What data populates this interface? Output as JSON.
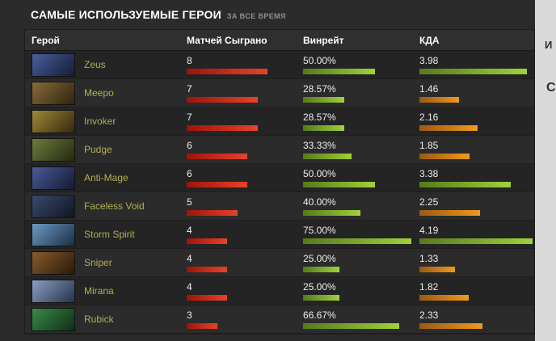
{
  "page": {
    "title": "САМЫЕ ИСПОЛЬЗУЕМЫЕ ГЕРОИ",
    "subtitle": "ЗА ВСЕ ВРЕМЯ"
  },
  "sidebar": {
    "cut_labels": [
      "И",
      "С"
    ]
  },
  "colors": {
    "red_bar": [
      "#9d140a",
      "#e8422a"
    ],
    "green_bar": [
      "#567a1c",
      "#a0d13a"
    ],
    "orange_bar": [
      "#9a5a12",
      "#ef9a1f"
    ]
  },
  "table": {
    "columns": [
      "Герой",
      "Матчей Сыграно",
      "Винрейт",
      "КДА"
    ],
    "max": {
      "matches": 8,
      "winrate": 75.0,
      "kda": 4.19
    },
    "rows": [
      {
        "hero": "Zeus",
        "matches": 8,
        "winrate": "50.00%",
        "winrate_value": 50.0,
        "winrate_color": "green",
        "kda": "3.98",
        "kda_value": 3.98,
        "kda_color": "green",
        "portrait": [
          "#4a5f9e",
          "#141c33"
        ]
      },
      {
        "hero": "Meepo",
        "matches": 7,
        "winrate": "28.57%",
        "winrate_value": 28.57,
        "winrate_color": "green",
        "kda": "1.46",
        "kda_value": 1.46,
        "kda_color": "orange",
        "portrait": [
          "#8a6b3a",
          "#2e2410"
        ]
      },
      {
        "hero": "Invoker",
        "matches": 7,
        "winrate": "28.57%",
        "winrate_value": 28.57,
        "winrate_color": "green",
        "kda": "2.16",
        "kda_value": 2.16,
        "kda_color": "orange",
        "portrait": [
          "#a08838",
          "#33290e"
        ]
      },
      {
        "hero": "Pudge",
        "matches": 6,
        "winrate": "33.33%",
        "winrate_value": 33.33,
        "winrate_color": "green",
        "kda": "1.85",
        "kda_value": 1.85,
        "kda_color": "orange",
        "portrait": [
          "#6e7a3c",
          "#232a10"
        ]
      },
      {
        "hero": "Anti-Mage",
        "matches": 6,
        "winrate": "50.00%",
        "winrate_value": 50.0,
        "winrate_color": "green",
        "kda": "3.38",
        "kda_value": 3.38,
        "kda_color": "green",
        "portrait": [
          "#4a5a9a",
          "#141a33"
        ]
      },
      {
        "hero": "Faceless Void",
        "matches": 5,
        "winrate": "40.00%",
        "winrate_value": 40.0,
        "winrate_color": "green",
        "kda": "2.25",
        "kda_value": 2.25,
        "kda_color": "orange",
        "portrait": [
          "#3a4a6b",
          "#0f1624"
        ]
      },
      {
        "hero": "Storm Spirit",
        "matches": 4,
        "winrate": "75.00%",
        "winrate_value": 75.0,
        "winrate_color": "green",
        "kda": "4.19",
        "kda_value": 4.19,
        "kda_color": "green",
        "portrait": [
          "#6b9ac4",
          "#1c2e44"
        ]
      },
      {
        "hero": "Sniper",
        "matches": 4,
        "winrate": "25.00%",
        "winrate_value": 25.0,
        "winrate_color": "green",
        "kda": "1.33",
        "kda_value": 1.33,
        "kda_color": "orange",
        "portrait": [
          "#8a5a2e",
          "#2a1a0a"
        ]
      },
      {
        "hero": "Mirana",
        "matches": 4,
        "winrate": "25.00%",
        "winrate_value": 25.0,
        "winrate_color": "green",
        "kda": "1.82",
        "kda_value": 1.82,
        "kda_color": "orange",
        "portrait": [
          "#8aa0c4",
          "#26324a"
        ]
      },
      {
        "hero": "Rubick",
        "matches": 3,
        "winrate": "66.67%",
        "winrate_value": 66.67,
        "winrate_color": "green",
        "kda": "2.33",
        "kda_value": 2.33,
        "kda_color": "orange",
        "portrait": [
          "#3a8a4a",
          "#0f2e14"
        ]
      }
    ]
  }
}
